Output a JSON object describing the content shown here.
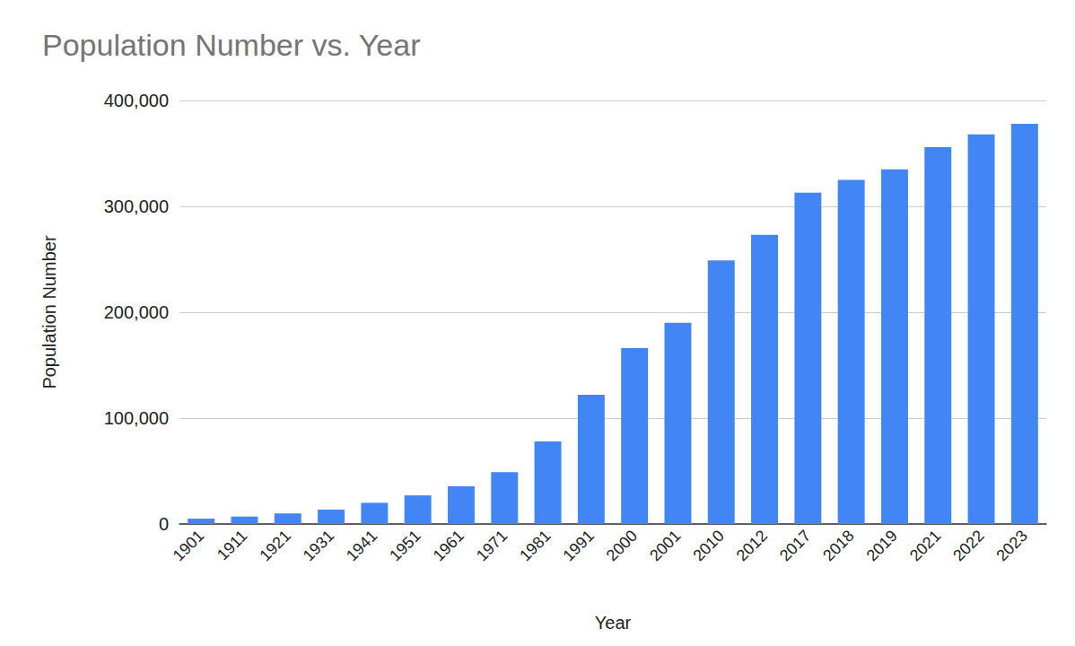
{
  "chart_data": {
    "type": "bar",
    "title": "Population Number vs. Year",
    "x_label": "Year",
    "y_label": "Population Number",
    "categories": [
      "1901",
      "1911",
      "1921",
      "1931",
      "1941",
      "1951",
      "1961",
      "1971",
      "1981",
      "1991",
      "2000",
      "2001",
      "2010",
      "2012",
      "2017",
      "2018",
      "2019",
      "2021",
      "2022",
      "2023"
    ],
    "values": [
      5000,
      7000,
      10000,
      13500,
      20000,
      27000,
      35500,
      49000,
      78000,
      122000,
      166000,
      190000,
      249000,
      273000,
      313000,
      325000,
      335000,
      356000,
      368000,
      378000
    ],
    "color": "#4285f4",
    "ylim": [
      0,
      400000
    ],
    "yticks": [
      0,
      {
        "value": 100000,
        "label": "100,000"
      },
      {
        "value": 200000,
        "label": "200,000"
      },
      {
        "value": 300000,
        "label": "300,000"
      },
      {
        "value": 400000,
        "label": "400,000"
      }
    ],
    "grid": true
  }
}
